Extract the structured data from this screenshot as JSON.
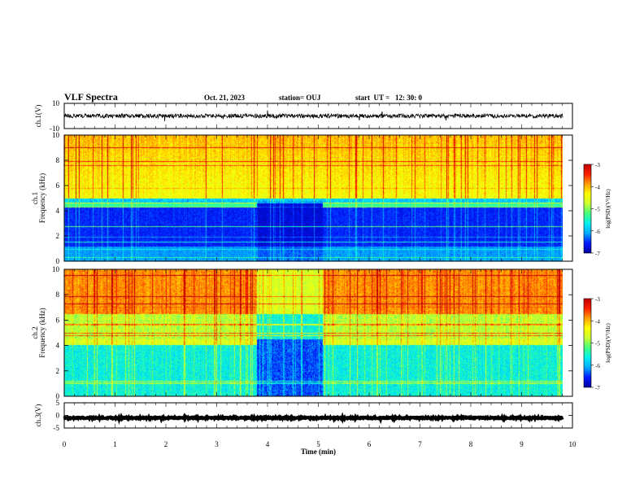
{
  "header": {
    "title": "VLF Spectra",
    "date": "Oct. 21, 2023",
    "station": "station= OUJ",
    "start": "start  UT =   12: 30: 0"
  },
  "colors": {
    "colormap": [
      "#0000a0",
      "#0018ff",
      "#00a8ff",
      "#00f0f0",
      "#40ff80",
      "#c8ff30",
      "#ffff00",
      "#ffa000",
      "#ff2000",
      "#c00000"
    ],
    "waveform": "#000000"
  },
  "chart_data": [
    {
      "type": "line",
      "name": "ch1-waveform",
      "ylabel": "ch.1(V)",
      "ylim": [
        -10,
        10
      ],
      "yticks": [
        10,
        -10
      ],
      "baseline": 0,
      "xlim": [
        0,
        10
      ]
    },
    {
      "type": "heatmap",
      "name": "ch1-spectrogram",
      "ylabel": "ch.1\nFrequency (kHz)",
      "ylim": [
        0,
        10
      ],
      "yticks": [
        0,
        2,
        4,
        6,
        8,
        10
      ],
      "xlim": [
        0,
        9.85
      ],
      "colorbar": {
        "label": "log(PSD)(V²/Hz)",
        "range": [
          -7,
          -3
        ],
        "ticks": [
          -3,
          -4,
          -5,
          -6,
          -7
        ]
      }
    },
    {
      "type": "heatmap",
      "name": "ch2-spectrogram",
      "ylabel": "ch.2\nFrequency (kHz)",
      "ylim": [
        0,
        10
      ],
      "yticks": [
        0,
        2,
        4,
        6,
        8,
        10
      ],
      "xlim": [
        0,
        9.85
      ],
      "colorbar": {
        "label": "log(PSD)(V²/Hz)",
        "range": [
          -7,
          -3
        ],
        "ticks": [
          -3,
          -4,
          -5,
          -6,
          -7
        ]
      }
    },
    {
      "type": "line",
      "name": "ch3-waveform",
      "ylabel": "ch.3(V)",
      "ylim": [
        -5,
        5
      ],
      "yticks": [
        5,
        0,
        -5
      ],
      "baseline": -1,
      "xlim": [
        0,
        10
      ],
      "xlabel": "Time (min)",
      "xticks": [
        0,
        1,
        2,
        3,
        4,
        5,
        6,
        7,
        8,
        9,
        10
      ]
    }
  ]
}
